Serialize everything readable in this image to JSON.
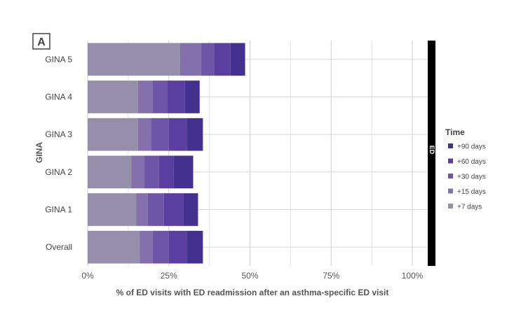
{
  "panel_label": "A",
  "chart_data": {
    "type": "bar",
    "orientation": "horizontal",
    "stacked": true,
    "title": "",
    "xlabel": "% of ED visits with ED readmission after an asthma-specific ED visit",
    "ylabel": "GINA",
    "facet_label": "ED",
    "xlim": [
      0,
      100
    ],
    "x_ticks": [
      0,
      25,
      50,
      75,
      100
    ],
    "x_tick_labels": [
      "0%",
      "25%",
      "50%",
      "75%",
      "100%"
    ],
    "grid": true,
    "categories": [
      "GINA 5",
      "GINA 4",
      "GINA 3",
      "GINA 2",
      "GINA 1",
      "Overall"
    ],
    "series": [
      {
        "name": "+7 days",
        "color": "#958fab",
        "values": [
          28.5,
          15.5,
          15.5,
          13.5,
          15.0,
          16.0
        ]
      },
      {
        "name": "+15 days",
        "color": "#8470ac",
        "values": [
          6.5,
          4.5,
          4.0,
          4.0,
          3.5,
          4.0
        ]
      },
      {
        "name": "+30 days",
        "color": "#6f55a8",
        "values": [
          4.0,
          4.5,
          5.5,
          4.5,
          5.0,
          5.0
        ]
      },
      {
        "name": "+60 days",
        "color": "#5a3fa0",
        "values": [
          5.0,
          5.5,
          5.5,
          4.5,
          6.0,
          5.5
        ]
      },
      {
        "name": "+90 days",
        "color": "#43308f",
        "values": [
          4.5,
          4.5,
          5.0,
          6.0,
          4.5,
          5.0
        ]
      }
    ],
    "legend": {
      "title": "Time",
      "position": "right",
      "entries": [
        "+90 days",
        "+60 days",
        "+30 days",
        "+15 days",
        "+7 days"
      ]
    }
  }
}
